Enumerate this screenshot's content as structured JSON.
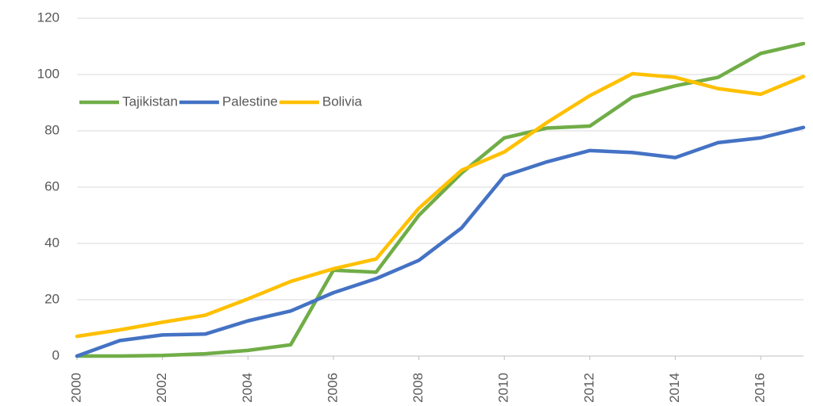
{
  "chart_data": {
    "type": "line",
    "x": [
      2000,
      2001,
      2002,
      2003,
      2004,
      2005,
      2006,
      2007,
      2008,
      2009,
      2010,
      2011,
      2012,
      2013,
      2014,
      2015,
      2016,
      2017
    ],
    "xlim": [
      2000,
      2017
    ],
    "xticks": [
      2000,
      2002,
      2004,
      2006,
      2008,
      2010,
      2012,
      2014,
      2016
    ],
    "ylim": [
      0,
      120
    ],
    "yticks": [
      0,
      20,
      40,
      60,
      80,
      100,
      120
    ],
    "grid": true,
    "legend": "top-left",
    "series": [
      {
        "name": "Tajikistan",
        "color": "#70ad47",
        "values": [
          0,
          0,
          0.2,
          0.8,
          2,
          4,
          30.5,
          29.8,
          50,
          65,
          77.5,
          81,
          81.7,
          92,
          96,
          99,
          107.5,
          111
        ]
      },
      {
        "name": "Palestine",
        "color": "#4472c4",
        "values": [
          0,
          5.5,
          7.5,
          7.8,
          12.5,
          16,
          22.5,
          27.5,
          34,
          45.5,
          64,
          69,
          73,
          72.3,
          70.5,
          75.8,
          77.5,
          81.2
        ]
      },
      {
        "name": "Bolivia",
        "color": "#ffc000",
        "values": [
          7,
          9.3,
          12,
          14.5,
          20.3,
          26.5,
          31,
          34.5,
          52.5,
          66,
          72.5,
          83,
          92.5,
          100.3,
          99,
          95,
          93,
          99.3
        ]
      }
    ]
  }
}
